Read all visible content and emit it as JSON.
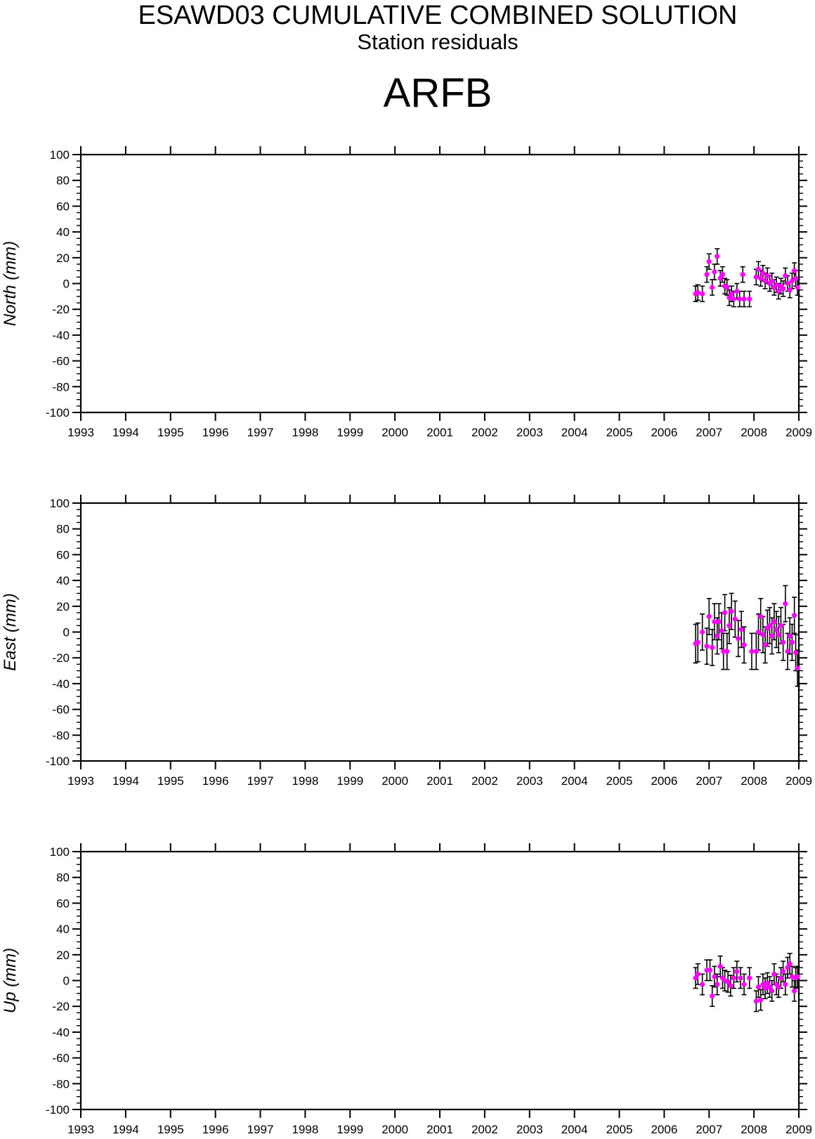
{
  "header": {
    "title": "ESAWD03 CUMULATIVE COMBINED SOLUTION",
    "subtitle": "Station residuals",
    "station": "ARFB"
  },
  "colors": {
    "point": "#ff00ff",
    "error_bar": "#000000",
    "axis": "#000000"
  },
  "chart_data": [
    {
      "type": "scatter",
      "ylabel": "North (mm)",
      "xlim": [
        1993,
        2009
      ],
      "ylim": [
        -100,
        100
      ],
      "x_ticks": [
        "1993",
        "1994",
        "1995",
        "1996",
        "1997",
        "1998",
        "1999",
        "2000",
        "2001",
        "2002",
        "2003",
        "2004",
        "2005",
        "2006",
        "2007",
        "2008",
        "2009"
      ],
      "y_ticks": [
        "100",
        "80",
        "60",
        "40",
        "20",
        "0",
        "-20",
        "-40",
        "-60",
        "-80",
        "-100"
      ],
      "grid": false,
      "error_bars": true,
      "points": [
        {
          "x": 2006.7,
          "y": -8,
          "err": 6
        },
        {
          "x": 2006.75,
          "y": -7,
          "err": 6
        },
        {
          "x": 2006.85,
          "y": -8,
          "err": 6
        },
        {
          "x": 2006.95,
          "y": 7,
          "err": 6
        },
        {
          "x": 2007.0,
          "y": 17,
          "err": 6
        },
        {
          "x": 2007.07,
          "y": -3,
          "err": 6
        },
        {
          "x": 2007.12,
          "y": 9,
          "err": 6
        },
        {
          "x": 2007.18,
          "y": 21,
          "err": 6
        },
        {
          "x": 2007.25,
          "y": 4,
          "err": 6
        },
        {
          "x": 2007.3,
          "y": 7,
          "err": 6
        },
        {
          "x": 2007.35,
          "y": -2,
          "err": 6
        },
        {
          "x": 2007.4,
          "y": -3,
          "err": 6
        },
        {
          "x": 2007.45,
          "y": -11,
          "err": 6
        },
        {
          "x": 2007.5,
          "y": -8,
          "err": 6
        },
        {
          "x": 2007.55,
          "y": -12,
          "err": 6
        },
        {
          "x": 2007.62,
          "y": -6,
          "err": 6
        },
        {
          "x": 2007.68,
          "y": -12,
          "err": 6
        },
        {
          "x": 2007.75,
          "y": 7,
          "err": 6
        },
        {
          "x": 2007.78,
          "y": -12,
          "err": 6
        },
        {
          "x": 2007.9,
          "y": -12,
          "err": 6
        },
        {
          "x": 2008.05,
          "y": 5,
          "err": 6
        },
        {
          "x": 2008.1,
          "y": 11,
          "err": 6
        },
        {
          "x": 2008.15,
          "y": 4,
          "err": 6
        },
        {
          "x": 2008.2,
          "y": 8,
          "err": 6
        },
        {
          "x": 2008.25,
          "y": 2,
          "err": 6
        },
        {
          "x": 2008.3,
          "y": 6,
          "err": 6
        },
        {
          "x": 2008.35,
          "y": 0,
          "err": 6
        },
        {
          "x": 2008.4,
          "y": 2,
          "err": 6
        },
        {
          "x": 2008.45,
          "y": -3,
          "err": 6
        },
        {
          "x": 2008.5,
          "y": -1,
          "err": 6
        },
        {
          "x": 2008.55,
          "y": -6,
          "err": 6
        },
        {
          "x": 2008.6,
          "y": -2,
          "err": 6
        },
        {
          "x": 2008.65,
          "y": -4,
          "err": 6
        },
        {
          "x": 2008.7,
          "y": 6,
          "err": 6
        },
        {
          "x": 2008.75,
          "y": 0,
          "err": 6
        },
        {
          "x": 2008.8,
          "y": -5,
          "err": 6
        },
        {
          "x": 2008.85,
          "y": 2,
          "err": 6
        },
        {
          "x": 2008.9,
          "y": 10,
          "err": 6
        },
        {
          "x": 2008.93,
          "y": 4,
          "err": 6
        },
        {
          "x": 2008.97,
          "y": -3,
          "err": 6
        }
      ]
    },
    {
      "type": "scatter",
      "ylabel": "East (mm)",
      "xlim": [
        1993,
        2009
      ],
      "ylim": [
        -100,
        100
      ],
      "x_ticks": [
        "1993",
        "1994",
        "1995",
        "1996",
        "1997",
        "1998",
        "1999",
        "2000",
        "2001",
        "2002",
        "2003",
        "2004",
        "2005",
        "2006",
        "2007",
        "2008",
        "2009"
      ],
      "y_ticks": [
        "100",
        "80",
        "60",
        "40",
        "20",
        "0",
        "-20",
        "-40",
        "-60",
        "-80",
        "-100"
      ],
      "grid": false,
      "error_bars": true,
      "points": [
        {
          "x": 2006.7,
          "y": -9,
          "err": 15
        },
        {
          "x": 2006.75,
          "y": -8,
          "err": 15
        },
        {
          "x": 2006.85,
          "y": 0,
          "err": 14
        },
        {
          "x": 2006.95,
          "y": -11,
          "err": 14
        },
        {
          "x": 2007.0,
          "y": 12,
          "err": 14
        },
        {
          "x": 2007.07,
          "y": -12,
          "err": 14
        },
        {
          "x": 2007.12,
          "y": 8,
          "err": 14
        },
        {
          "x": 2007.18,
          "y": -3,
          "err": 14
        },
        {
          "x": 2007.22,
          "y": 8,
          "err": 14
        },
        {
          "x": 2007.28,
          "y": 1,
          "err": 14
        },
        {
          "x": 2007.32,
          "y": -15,
          "err": 14
        },
        {
          "x": 2007.35,
          "y": 15,
          "err": 14
        },
        {
          "x": 2007.4,
          "y": -15,
          "err": 14
        },
        {
          "x": 2007.45,
          "y": 5,
          "err": 14
        },
        {
          "x": 2007.5,
          "y": 16,
          "err": 14
        },
        {
          "x": 2007.58,
          "y": 10,
          "err": 14
        },
        {
          "x": 2007.65,
          "y": -5,
          "err": 14
        },
        {
          "x": 2007.72,
          "y": 2,
          "err": 14
        },
        {
          "x": 2007.78,
          "y": -10,
          "err": 14
        },
        {
          "x": 2007.95,
          "y": -15,
          "err": 14
        },
        {
          "x": 2008.05,
          "y": -15,
          "err": 14
        },
        {
          "x": 2008.1,
          "y": 0,
          "err": 14
        },
        {
          "x": 2008.15,
          "y": 12,
          "err": 14
        },
        {
          "x": 2008.2,
          "y": -2,
          "err": 14
        },
        {
          "x": 2008.25,
          "y": -10,
          "err": 14
        },
        {
          "x": 2008.3,
          "y": 3,
          "err": 14
        },
        {
          "x": 2008.35,
          "y": 5,
          "err": 14
        },
        {
          "x": 2008.4,
          "y": -3,
          "err": 14
        },
        {
          "x": 2008.45,
          "y": 8,
          "err": 14
        },
        {
          "x": 2008.5,
          "y": 2,
          "err": 14
        },
        {
          "x": 2008.55,
          "y": -2,
          "err": 14
        },
        {
          "x": 2008.6,
          "y": 5,
          "err": 14
        },
        {
          "x": 2008.65,
          "y": -8,
          "err": 14
        },
        {
          "x": 2008.7,
          "y": 22,
          "err": 14
        },
        {
          "x": 2008.75,
          "y": -15,
          "err": 14
        },
        {
          "x": 2008.8,
          "y": -3,
          "err": 14
        },
        {
          "x": 2008.85,
          "y": -8,
          "err": 14
        },
        {
          "x": 2008.9,
          "y": 13,
          "err": 14
        },
        {
          "x": 2008.93,
          "y": -16,
          "err": 14
        },
        {
          "x": 2008.97,
          "y": -28,
          "err": 14
        }
      ]
    },
    {
      "type": "scatter",
      "ylabel": "Up (mm)",
      "xlim": [
        1993,
        2009
      ],
      "ylim": [
        -100,
        100
      ],
      "x_ticks": [
        "1993",
        "1994",
        "1995",
        "1996",
        "1997",
        "1998",
        "1999",
        "2000",
        "2001",
        "2002",
        "2003",
        "2004",
        "2005",
        "2006",
        "2007",
        "2008",
        "2009"
      ],
      "y_ticks": [
        "100",
        "80",
        "60",
        "40",
        "20",
        "0",
        "-20",
        "-40",
        "-60",
        "-80",
        "-100"
      ],
      "grid": false,
      "error_bars": true,
      "points": [
        {
          "x": 2006.7,
          "y": 2,
          "err": 8
        },
        {
          "x": 2006.75,
          "y": 5,
          "err": 8
        },
        {
          "x": 2006.85,
          "y": -3,
          "err": 8
        },
        {
          "x": 2006.95,
          "y": 8,
          "err": 8
        },
        {
          "x": 2007.02,
          "y": 8,
          "err": 8
        },
        {
          "x": 2007.07,
          "y": -12,
          "err": 8
        },
        {
          "x": 2007.12,
          "y": 3,
          "err": 8
        },
        {
          "x": 2007.18,
          "y": -3,
          "err": 8
        },
        {
          "x": 2007.25,
          "y": 11,
          "err": 8
        },
        {
          "x": 2007.3,
          "y": 2,
          "err": 8
        },
        {
          "x": 2007.35,
          "y": 0,
          "err": 8
        },
        {
          "x": 2007.42,
          "y": -1,
          "err": 8
        },
        {
          "x": 2007.48,
          "y": -4,
          "err": 8
        },
        {
          "x": 2007.55,
          "y": 2,
          "err": 8
        },
        {
          "x": 2007.62,
          "y": 7,
          "err": 8
        },
        {
          "x": 2007.7,
          "y": 2,
          "err": 8
        },
        {
          "x": 2007.78,
          "y": -3,
          "err": 8
        },
        {
          "x": 2007.9,
          "y": 2,
          "err": 8
        },
        {
          "x": 2008.05,
          "y": -16,
          "err": 8
        },
        {
          "x": 2008.1,
          "y": -5,
          "err": 8
        },
        {
          "x": 2008.15,
          "y": -15,
          "err": 8
        },
        {
          "x": 2008.2,
          "y": -3,
          "err": 8
        },
        {
          "x": 2008.25,
          "y": -6,
          "err": 8
        },
        {
          "x": 2008.3,
          "y": -2,
          "err": 8
        },
        {
          "x": 2008.35,
          "y": -5,
          "err": 8
        },
        {
          "x": 2008.4,
          "y": -8,
          "err": 8
        },
        {
          "x": 2008.45,
          "y": 5,
          "err": 8
        },
        {
          "x": 2008.5,
          "y": -3,
          "err": 8
        },
        {
          "x": 2008.55,
          "y": -5,
          "err": 8
        },
        {
          "x": 2008.6,
          "y": 2,
          "err": 8
        },
        {
          "x": 2008.65,
          "y": 7,
          "err": 8
        },
        {
          "x": 2008.7,
          "y": -3,
          "err": 8
        },
        {
          "x": 2008.75,
          "y": 10,
          "err": 8
        },
        {
          "x": 2008.8,
          "y": 13,
          "err": 8
        },
        {
          "x": 2008.85,
          "y": 3,
          "err": 8
        },
        {
          "x": 2008.9,
          "y": -8,
          "err": 8
        },
        {
          "x": 2008.93,
          "y": 2,
          "err": 8
        },
        {
          "x": 2008.97,
          "y": 3,
          "err": 8
        }
      ]
    }
  ]
}
